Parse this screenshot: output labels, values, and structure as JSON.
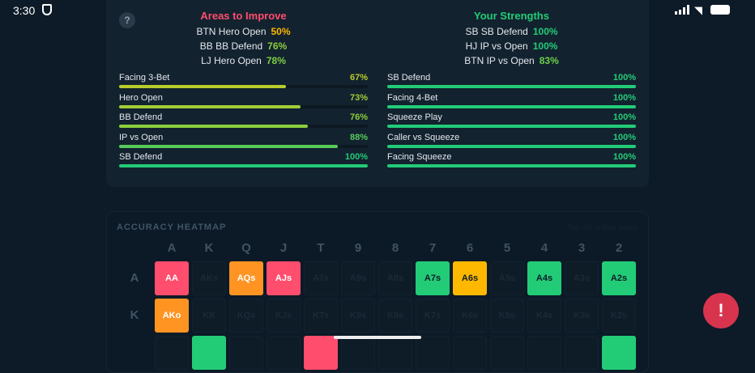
{
  "status": {
    "time": "3:30"
  },
  "help_label": "?",
  "improve": {
    "title": "Areas to Improve",
    "highlights": [
      {
        "label": "BTN Hero Open",
        "value": "50%",
        "color": "#ffb800"
      },
      {
        "label": "BB BB Defend",
        "value": "76%",
        "color": "#8ccf3c"
      },
      {
        "label": "LJ Hero Open",
        "value": "78%",
        "color": "#7dcf45"
      }
    ],
    "bars": [
      {
        "label": "Facing 3-Bet",
        "value": "67%",
        "pct": 67,
        "color": "#b8cc2c"
      },
      {
        "label": "Hero Open",
        "value": "73%",
        "pct": 73,
        "color": "#a2cc36"
      },
      {
        "label": "BB Defend",
        "value": "76%",
        "pct": 76,
        "color": "#8ccf3c"
      },
      {
        "label": "IP vs Open",
        "value": "88%",
        "pct": 88,
        "color": "#55cc5a"
      },
      {
        "label": "SB Defend",
        "value": "100%",
        "pct": 100,
        "color": "#22cc77"
      }
    ]
  },
  "strengths": {
    "title": "Your Strengths",
    "highlights": [
      {
        "label": "SB SB Defend",
        "value": "100%",
        "color": "#22cc77"
      },
      {
        "label": "HJ IP vs Open",
        "value": "100%",
        "color": "#22cc77"
      },
      {
        "label": "BTN IP vs Open",
        "value": "83%",
        "color": "#6ccf4b"
      }
    ],
    "bars": [
      {
        "label": "SB Defend",
        "value": "100%",
        "pct": 100,
        "color": "#22cc77"
      },
      {
        "label": "Facing 4-Bet",
        "value": "100%",
        "pct": 100,
        "color": "#22cc77"
      },
      {
        "label": "Squeeze Play",
        "value": "100%",
        "pct": 100,
        "color": "#22cc77"
      },
      {
        "label": "Caller vs Squeeze",
        "value": "100%",
        "pct": 100,
        "color": "#22cc77"
      },
      {
        "label": "Facing Squeeze",
        "value": "100%",
        "pct": 100,
        "color": "#22cc77"
      }
    ]
  },
  "heatmap": {
    "title": "ACCURACY HEATMAP",
    "hint": "Tap cell to filter hands",
    "ranks": [
      "A",
      "K",
      "Q",
      "J",
      "T",
      "9",
      "8",
      "7",
      "6",
      "5",
      "4",
      "3",
      "2"
    ],
    "row_labels": [
      "A",
      "K"
    ],
    "colors": {
      "red": "#ff4d6d",
      "orange": "#ff9422",
      "yellow": "#ffb800",
      "green": "#22cc77"
    },
    "rows": [
      [
        {
          "h": "AA",
          "c": "red"
        },
        {
          "h": "AKs"
        },
        {
          "h": "AQs",
          "c": "orange"
        },
        {
          "h": "AJs",
          "c": "red"
        },
        {
          "h": "ATs"
        },
        {
          "h": "A9s"
        },
        {
          "h": "A8s"
        },
        {
          "h": "A7s",
          "c": "green"
        },
        {
          "h": "A6s",
          "c": "yellow"
        },
        {
          "h": "A5s"
        },
        {
          "h": "A4s",
          "c": "green"
        },
        {
          "h": "A3s"
        },
        {
          "h": "A2s",
          "c": "green"
        }
      ],
      [
        {
          "h": "AKo",
          "c": "orange"
        },
        {
          "h": "KK"
        },
        {
          "h": "KQs"
        },
        {
          "h": "KJs"
        },
        {
          "h": "KTs"
        },
        {
          "h": "K9s"
        },
        {
          "h": "K8s"
        },
        {
          "h": "K7s"
        },
        {
          "h": "K6s"
        },
        {
          "h": "K5s"
        },
        {
          "h": "K4s"
        },
        {
          "h": "K3s"
        },
        {
          "h": "K2s"
        }
      ],
      [
        {
          "h": ""
        },
        {
          "h": "",
          "c": "green"
        },
        {
          "h": ""
        },
        {
          "h": ""
        },
        {
          "h": "",
          "c": "red"
        },
        {
          "h": ""
        },
        {
          "h": ""
        },
        {
          "h": ""
        },
        {
          "h": ""
        },
        {
          "h": ""
        },
        {
          "h": ""
        },
        {
          "h": ""
        },
        {
          "h": "",
          "c": "green"
        }
      ]
    ]
  },
  "fab_label": "!"
}
